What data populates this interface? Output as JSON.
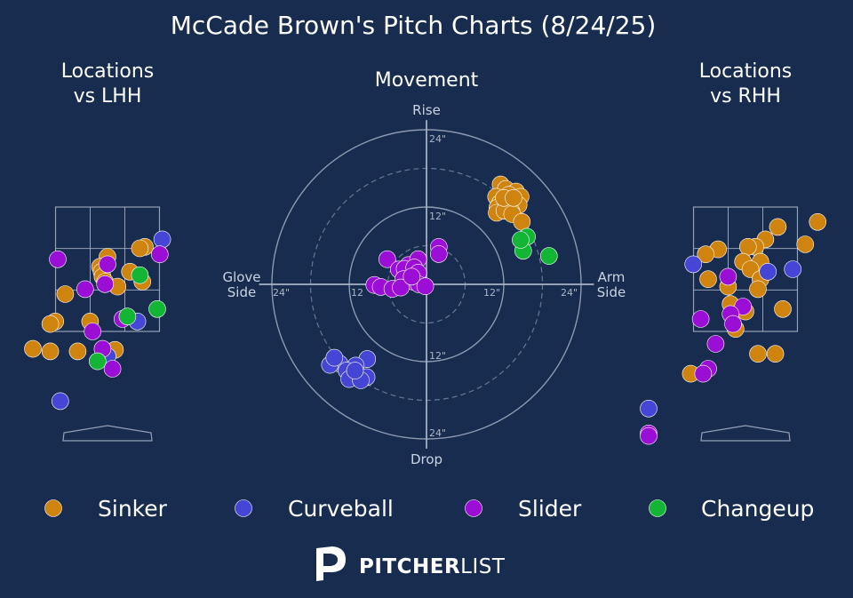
{
  "chart_data": {
    "title": "McCade Brown's Pitch Charts (8/24/25)",
    "colors": {
      "background": "#172c4e",
      "Sinker": "#cf8410",
      "Curveball": "#4646d6",
      "Slider": "#9b0ed6",
      "Changeup": "#12b634",
      "grid": "#aab6c9"
    },
    "pitch_types": [
      "Sinker",
      "Curveball",
      "Slider",
      "Changeup"
    ],
    "legend": {
      "placement": "bottom",
      "entries": [
        {
          "name": "Sinker",
          "color": "#cf8410"
        },
        {
          "name": "Curveball",
          "color": "#4646d6"
        },
        {
          "name": "Slider",
          "color": "#9b0ed6"
        },
        {
          "name": "Changeup",
          "color": "#12b634"
        }
      ]
    },
    "logo": {
      "part1": "PITCHER",
      "part2": "LIST",
      "icon": "pitcherlist-p-logo"
    },
    "panels": [
      {
        "id": "lhh",
        "type": "scatter",
        "title_line1": "Locations",
        "title_line2": "vs LHH",
        "xlim": [
          -2.4,
          2.4
        ],
        "ylim": [
          -0.3,
          4.8
        ],
        "strike_zone": {
          "x": [
            -0.83,
            0.83
          ],
          "z": [
            1.5,
            3.5
          ]
        },
        "points": [
          {
            "type": "Sinker",
            "x": 0.0,
            "z": 3.25
          },
          {
            "type": "Sinker",
            "x": 0.75,
            "z": 3.45
          },
          {
            "type": "Sinker",
            "x": 0.65,
            "z": 3.42
          },
          {
            "type": "Sinker",
            "x": -0.15,
            "z": 3.05
          },
          {
            "type": "Sinker",
            "x": -0.12,
            "z": 2.95
          },
          {
            "type": "Sinker",
            "x": -0.1,
            "z": 2.85
          },
          {
            "type": "Sinker",
            "x": -0.05,
            "z": 2.75
          },
          {
            "type": "Sinker",
            "x": 0.45,
            "z": 2.95
          },
          {
            "type": "Sinker",
            "x": 0.2,
            "z": 2.65
          },
          {
            "type": "Sinker",
            "x": 0.7,
            "z": 2.75
          },
          {
            "type": "Sinker",
            "x": -0.85,
            "z": 2.5
          },
          {
            "type": "Sinker",
            "x": -0.35,
            "z": 1.95
          },
          {
            "type": "Sinker",
            "x": -1.05,
            "z": 1.95
          },
          {
            "type": "Sinker",
            "x": -1.15,
            "z": 1.9
          },
          {
            "type": "Sinker",
            "x": -1.5,
            "z": 1.4
          },
          {
            "type": "Sinker",
            "x": -1.15,
            "z": 1.35
          },
          {
            "type": "Sinker",
            "x": -0.6,
            "z": 1.35
          },
          {
            "type": "Sinker",
            "x": 0.15,
            "z": 1.38
          },
          {
            "type": "Curveball",
            "x": 1.1,
            "z": 3.6
          },
          {
            "type": "Curveball",
            "x": 0.6,
            "z": 1.95
          },
          {
            "type": "Curveball",
            "x": 0.0,
            "z": 1.25
          },
          {
            "type": "Curveball",
            "x": -0.95,
            "z": 0.35
          },
          {
            "type": "Slider",
            "x": -1.0,
            "z": 3.2
          },
          {
            "type": "Slider",
            "x": 1.05,
            "z": 3.3
          },
          {
            "type": "Slider",
            "x": 0.0,
            "z": 3.1
          },
          {
            "type": "Slider",
            "x": -0.05,
            "z": 2.7
          },
          {
            "type": "Slider",
            "x": -0.45,
            "z": 2.6
          },
          {
            "type": "Slider",
            "x": 0.3,
            "z": 2.0
          },
          {
            "type": "Slider",
            "x": -0.3,
            "z": 1.75
          },
          {
            "type": "Slider",
            "x": -0.1,
            "z": 1.4
          },
          {
            "type": "Slider",
            "x": 0.1,
            "z": 1.0
          },
          {
            "type": "Changeup",
            "x": 0.65,
            "z": 2.88
          },
          {
            "type": "Changeup",
            "x": 1.0,
            "z": 2.2
          },
          {
            "type": "Changeup",
            "x": 0.4,
            "z": 2.05
          },
          {
            "type": "Changeup",
            "x": -0.2,
            "z": 1.15
          }
        ]
      },
      {
        "id": "movement",
        "type": "scatter",
        "title": "Movement",
        "xlim": [
          -28,
          28
        ],
        "ylim": [
          -28,
          28
        ],
        "unit": "inches",
        "axis_labels": {
          "top": "Rise",
          "bottom": "Drop",
          "left_line1": "Glove",
          "left_line2": "Side",
          "right_line1": "Arm",
          "right_line2": "Side"
        },
        "ring_labels": {
          "top_24": "24\"",
          "top_12": "12\"",
          "bottom_12": "12\"",
          "bottom_24": "24\"",
          "left_24": "24\"",
          "left_12": "12",
          "right_12": "12\"",
          "right_24": "24\""
        },
        "rings_solid": [
          12,
          24
        ],
        "rings_dashed": [
          6,
          18
        ],
        "points": [
          {
            "type": "Sinker",
            "x": 11.5,
            "y": 15.5
          },
          {
            "type": "Sinker",
            "x": 12.3,
            "y": 14.8
          },
          {
            "type": "Sinker",
            "x": 13.9,
            "y": 14.4
          },
          {
            "type": "Sinker",
            "x": 10.8,
            "y": 13.6
          },
          {
            "type": "Sinker",
            "x": 12.8,
            "y": 13.9
          },
          {
            "type": "Sinker",
            "x": 14.6,
            "y": 13.6
          },
          {
            "type": "Sinker",
            "x": 11.4,
            "y": 12.6
          },
          {
            "type": "Sinker",
            "x": 13.1,
            "y": 12.8
          },
          {
            "type": "Sinker",
            "x": 14.3,
            "y": 12.3
          },
          {
            "type": "Sinker",
            "x": 11.0,
            "y": 11.9
          },
          {
            "type": "Sinker",
            "x": 12.5,
            "y": 11.6
          },
          {
            "type": "Sinker",
            "x": 13.2,
            "y": 11.3
          },
          {
            "type": "Sinker",
            "x": 10.9,
            "y": 11.1
          },
          {
            "type": "Sinker",
            "x": 12.1,
            "y": 11.4
          },
          {
            "type": "Sinker",
            "x": 13.3,
            "y": 10.9
          },
          {
            "type": "Sinker",
            "x": 14.8,
            "y": 9.7
          },
          {
            "type": "Sinker",
            "x": 12.0,
            "y": 13.4
          },
          {
            "type": "Sinker",
            "x": 13.5,
            "y": 13.4
          },
          {
            "type": "Curveball",
            "x": -13.5,
            "y": -12.3
          },
          {
            "type": "Curveball",
            "x": -15.0,
            "y": -12.5
          },
          {
            "type": "Curveball",
            "x": -14.3,
            "y": -11.4
          },
          {
            "type": "Curveball",
            "x": -9.2,
            "y": -11.6
          },
          {
            "type": "Curveball",
            "x": -11.0,
            "y": -12.6
          },
          {
            "type": "Curveball",
            "x": -12.4,
            "y": -13.4
          },
          {
            "type": "Curveball",
            "x": -9.3,
            "y": -14.4
          },
          {
            "type": "Curveball",
            "x": -12.0,
            "y": -14.7
          },
          {
            "type": "Curveball",
            "x": -10.2,
            "y": -14.9
          },
          {
            "type": "Curveball",
            "x": -11.1,
            "y": -13.4
          },
          {
            "type": "Slider",
            "x": -6.1,
            "y": 3.9
          },
          {
            "type": "Slider",
            "x": -4.3,
            "y": 2.3
          },
          {
            "type": "Slider",
            "x": -2.8,
            "y": 3.0
          },
          {
            "type": "Slider",
            "x": -1.3,
            "y": 3.9
          },
          {
            "type": "Slider",
            "x": 1.9,
            "y": 5.8
          },
          {
            "type": "Slider",
            "x": 1.9,
            "y": 4.7
          },
          {
            "type": "Slider",
            "x": -3.4,
            "y": 2.4
          },
          {
            "type": "Slider",
            "x": -1.9,
            "y": 2.6
          },
          {
            "type": "Slider",
            "x": -1.3,
            "y": 1.8
          },
          {
            "type": "Slider",
            "x": -3.6,
            "y": 0.8
          },
          {
            "type": "Slider",
            "x": -2.0,
            "y": 0.4
          },
          {
            "type": "Slider",
            "x": -8.1,
            "y": -0.1
          },
          {
            "type": "Slider",
            "x": -7.1,
            "y": -0.4
          },
          {
            "type": "Slider",
            "x": -5.3,
            "y": -0.7
          },
          {
            "type": "Slider",
            "x": -4.0,
            "y": -0.5
          },
          {
            "type": "Slider",
            "x": -1.2,
            "y": 0.0
          },
          {
            "type": "Slider",
            "x": -0.2,
            "y": -0.3
          },
          {
            "type": "Slider",
            "x": -2.3,
            "y": 1.2
          },
          {
            "type": "Changeup",
            "x": 15.6,
            "y": 7.4
          },
          {
            "type": "Changeup",
            "x": 15.0,
            "y": 5.2
          },
          {
            "type": "Changeup",
            "x": 14.6,
            "y": 6.9
          },
          {
            "type": "Changeup",
            "x": 19.0,
            "y": 4.4
          }
        ]
      },
      {
        "id": "rhh",
        "type": "scatter",
        "title_line1": "Locations",
        "title_line2": "vs RHH",
        "xlim": [
          -2.4,
          2.4
        ],
        "ylim": [
          -0.3,
          4.8
        ],
        "strike_zone": {
          "x": [
            -0.83,
            0.83
          ],
          "z": [
            1.5,
            3.5
          ]
        },
        "points": [
          {
            "type": "Sinker",
            "x": 0.65,
            "z": 3.85
          },
          {
            "type": "Sinker",
            "x": 1.45,
            "z": 3.95
          },
          {
            "type": "Sinker",
            "x": 1.2,
            "z": 3.5
          },
          {
            "type": "Sinker",
            "x": 0.4,
            "z": 3.6
          },
          {
            "type": "Sinker",
            "x": 0.2,
            "z": 3.45
          },
          {
            "type": "Sinker",
            "x": 0.05,
            "z": 3.45
          },
          {
            "type": "Sinker",
            "x": -0.55,
            "z": 3.4
          },
          {
            "type": "Sinker",
            "x": -0.8,
            "z": 3.3
          },
          {
            "type": "Sinker",
            "x": -0.05,
            "z": 3.15
          },
          {
            "type": "Sinker",
            "x": 0.3,
            "z": 3.15
          },
          {
            "type": "Sinker",
            "x": 0.1,
            "z": 3.0
          },
          {
            "type": "Sinker",
            "x": 0.3,
            "z": 2.8
          },
          {
            "type": "Sinker",
            "x": -0.75,
            "z": 2.8
          },
          {
            "type": "Sinker",
            "x": -0.35,
            "z": 2.65
          },
          {
            "type": "Sinker",
            "x": 0.25,
            "z": 2.6
          },
          {
            "type": "Sinker",
            "x": -0.3,
            "z": 2.3
          },
          {
            "type": "Sinker",
            "x": 0.0,
            "z": 2.15
          },
          {
            "type": "Sinker",
            "x": 0.75,
            "z": 2.2
          },
          {
            "type": "Sinker",
            "x": -0.2,
            "z": 1.8
          },
          {
            "type": "Sinker",
            "x": 0.25,
            "z": 1.3
          },
          {
            "type": "Sinker",
            "x": 0.6,
            "z": 1.3
          },
          {
            "type": "Sinker",
            "x": -1.1,
            "z": 0.9
          },
          {
            "type": "Curveball",
            "x": -1.05,
            "z": 3.1
          },
          {
            "type": "Curveball",
            "x": 0.45,
            "z": 2.95
          },
          {
            "type": "Curveball",
            "x": 0.95,
            "z": 3.0
          },
          {
            "type": "Curveball",
            "x": -2.15,
            "z": 0.2
          },
          {
            "type": "Slider",
            "x": -0.35,
            "z": 2.85
          },
          {
            "type": "Slider",
            "x": -0.05,
            "z": 2.25
          },
          {
            "type": "Slider",
            "x": -0.3,
            "z": 2.1
          },
          {
            "type": "Slider",
            "x": -0.25,
            "z": 1.9
          },
          {
            "type": "Slider",
            "x": -0.9,
            "z": 2.0
          },
          {
            "type": "Slider",
            "x": -0.6,
            "z": 1.5
          },
          {
            "type": "Slider",
            "x": -0.75,
            "z": 1.0
          },
          {
            "type": "Slider",
            "x": -0.85,
            "z": 0.9
          },
          {
            "type": "Slider",
            "x": -2.15,
            "z": -0.3
          },
          {
            "type": "Slider",
            "x": -2.1,
            "z": -0.35
          }
        ]
      }
    ]
  }
}
